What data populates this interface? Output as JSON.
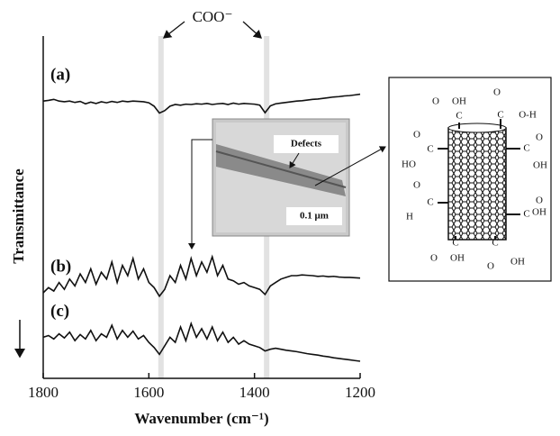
{
  "chart_data": {
    "type": "line",
    "x_label": "Wavenumber (cm⁻¹)",
    "y_label": "Transmittance",
    "annotations": {
      "peak_label": "COO⁻",
      "inset_defects": "Defects",
      "inset_scale": "0.1 μm"
    },
    "highlights": [
      1577,
      1377
    ],
    "xlim": [
      1800,
      1200
    ],
    "xticks": [
      1800,
      1600,
      1400,
      1200
    ],
    "ylim": [
      0,
      100
    ],
    "x": [
      1800,
      1790,
      1780,
      1770,
      1760,
      1750,
      1740,
      1730,
      1720,
      1710,
      1700,
      1690,
      1680,
      1670,
      1660,
      1650,
      1640,
      1630,
      1620,
      1610,
      1600,
      1590,
      1580,
      1570,
      1560,
      1550,
      1540,
      1530,
      1520,
      1510,
      1500,
      1490,
      1480,
      1470,
      1460,
      1450,
      1440,
      1430,
      1420,
      1410,
      1400,
      1390,
      1380,
      1370,
      1360,
      1350,
      1340,
      1330,
      1320,
      1310,
      1300,
      1290,
      1280,
      1270,
      1260,
      1250,
      1240,
      1230,
      1220,
      1210,
      1200
    ],
    "series": [
      {
        "name": "(a)",
        "color": "#111111",
        "values": [
          81,
          81.2,
          81.5,
          81,
          80.8,
          81,
          80.6,
          80.9,
          80.2,
          80.7,
          80.3,
          80.8,
          80.5,
          80.9,
          80.6,
          81,
          80.8,
          81,
          80.9,
          80.8,
          80.5,
          79.5,
          77.5,
          78.2,
          79.5,
          80,
          79.8,
          80.1,
          80,
          80.2,
          80.1,
          80.3,
          80,
          80.2,
          80.3,
          80,
          80.4,
          80.1,
          80.3,
          80.2,
          80.1,
          79.8,
          77.6,
          79.6,
          80.2,
          80.4,
          80.6,
          80.8,
          81,
          81.1,
          81.3,
          81.5,
          81.6,
          81.8,
          82,
          82.2,
          82.3,
          82.5,
          82.6,
          82.8,
          83
        ]
      },
      {
        "name": "(b)",
        "color": "#111111",
        "values": [
          25,
          26.5,
          25.5,
          28,
          26,
          29,
          27,
          30.5,
          28,
          32,
          27.5,
          31,
          29,
          34,
          28,
          33,
          30,
          35,
          29,
          32,
          28,
          26.5,
          24,
          26,
          30,
          28,
          33,
          29,
          35,
          30,
          34,
          31,
          35.5,
          30,
          33,
          29,
          28.5,
          27.5,
          28,
          27,
          26.5,
          26,
          24.5,
          27,
          28,
          29,
          29.5,
          30,
          30,
          30.2,
          30.1,
          30,
          29.8,
          29.9,
          29.7,
          29.8,
          29.6,
          29.5,
          29.5,
          29.4,
          29.3
        ]
      },
      {
        "name": "(c)",
        "color": "#111111",
        "values": [
          12,
          12.5,
          11.5,
          13,
          11.8,
          13.5,
          11,
          12.8,
          11.5,
          14,
          11,
          13,
          12,
          15.5,
          11.5,
          14,
          12,
          13.8,
          11.5,
          12.5,
          10.5,
          9,
          7,
          9.5,
          12,
          10.5,
          15,
          11,
          16,
          12,
          14.5,
          11.5,
          15,
          11,
          13.5,
          10.5,
          12,
          10,
          11,
          10,
          9.5,
          9,
          8,
          8.5,
          8.8,
          8.5,
          8.2,
          8,
          7.8,
          7.5,
          7.2,
          7,
          6.8,
          6.5,
          6.3,
          6,
          5.8,
          5.6,
          5.4,
          5.2,
          5
        ]
      }
    ]
  },
  "diagram": {
    "labels": [
      "O",
      "OH",
      "C",
      "O",
      "C",
      "O-H",
      "O",
      "C",
      "HO",
      "O",
      "C",
      "OH",
      "O",
      "C",
      "H",
      "O",
      "OH",
      "C",
      "C",
      "O",
      "OH",
      "C",
      "O",
      "OH"
    ]
  }
}
